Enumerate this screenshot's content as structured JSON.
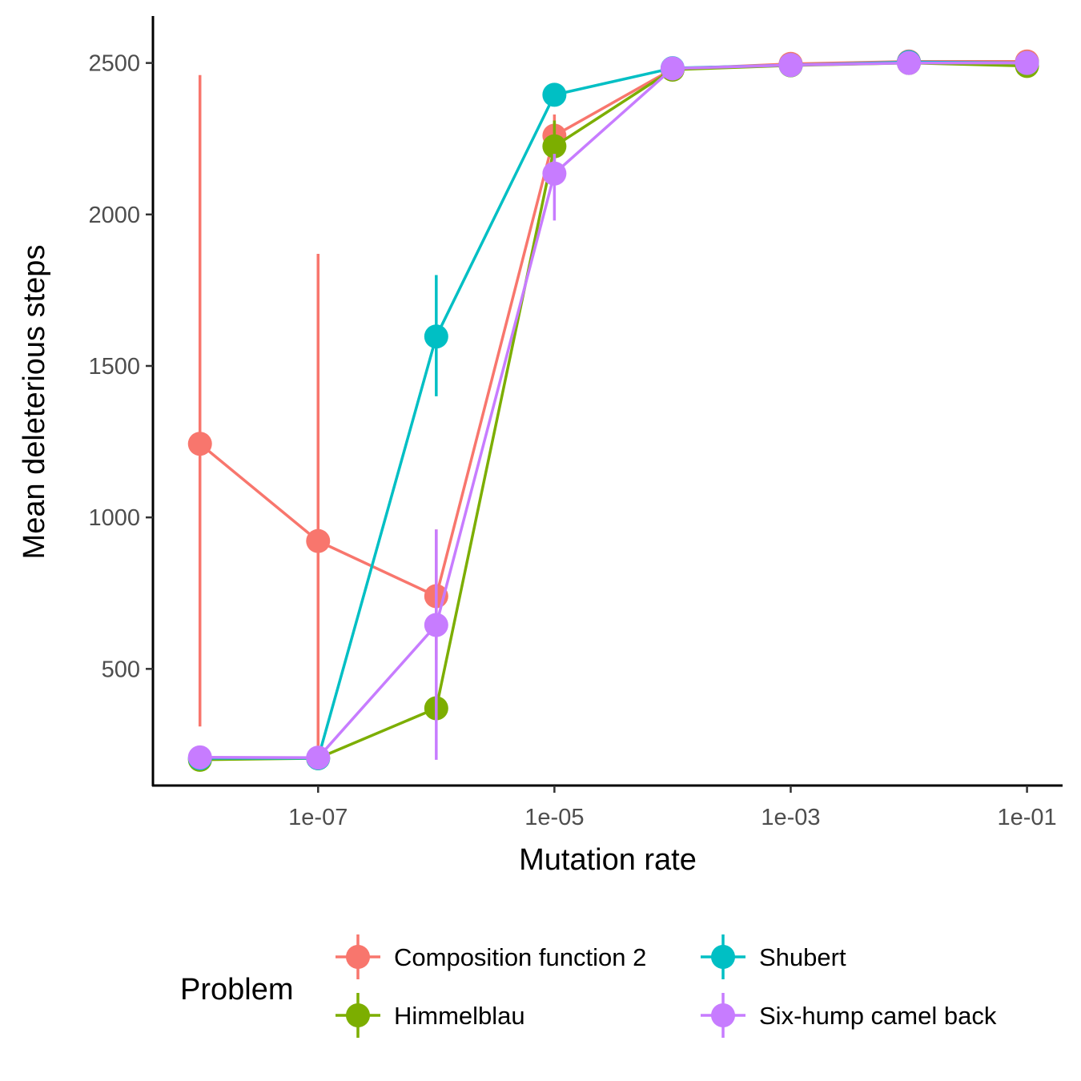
{
  "chart_data": {
    "type": "line",
    "xlabel": "Mutation rate",
    "ylabel": "Mean deleterious steps",
    "x_scale": "log10",
    "x": [
      1e-08,
      1e-07,
      1e-06,
      1e-05,
      0.0001,
      0.001,
      0.01,
      0.1
    ],
    "xlim": [
      4e-09,
      0.2
    ],
    "ylim": [
      115,
      2655
    ],
    "x_ticks": [
      1e-07,
      1e-05,
      0.001,
      0.1
    ],
    "x_tick_labels": [
      "1e-07",
      "1e-05",
      "1e-03",
      "1e-01"
    ],
    "y_ticks": [
      500,
      1000,
      1500,
      2000,
      2500
    ],
    "y_tick_labels": [
      "500",
      "1000",
      "1500",
      "2000",
      "2500"
    ],
    "grid": false,
    "legend": {
      "title": "Problem",
      "position": "bottom"
    },
    "series": [
      {
        "name": "Composition function 2",
        "color": "#F8766D",
        "values": [
          1243,
          922,
          740,
          2260,
          2480,
          2497,
          2505,
          2505
        ],
        "error_low": [
          310,
          200,
          530,
          2210,
          2470,
          2490,
          2498,
          2498
        ],
        "error_high": [
          2460,
          1870,
          960,
          2330,
          2490,
          2505,
          2512,
          2512
        ]
      },
      {
        "name": "Himmelblau",
        "color": "#7CAE00",
        "values": [
          200,
          205,
          370,
          2225,
          2478,
          2492,
          2500,
          2490
        ],
        "error_low": [
          195,
          200,
          340,
          2170,
          2470,
          2485,
          2493,
          2483
        ],
        "error_high": [
          205,
          210,
          400,
          2310,
          2486,
          2499,
          2507,
          2497
        ]
      },
      {
        "name": "Shubert",
        "color": "#00BFC4",
        "values": [
          205,
          205,
          1597,
          2395,
          2483,
          2493,
          2503,
          2500
        ],
        "error_low": [
          200,
          200,
          1400,
          2360,
          2476,
          2486,
          2496,
          2493
        ],
        "error_high": [
          210,
          210,
          1800,
          2430,
          2490,
          2500,
          2510,
          2507
        ]
      },
      {
        "name": "Six-hump camel back",
        "color": "#C77CFF",
        "values": [
          208,
          207,
          645,
          2135,
          2482,
          2493,
          2500,
          2500
        ],
        "error_low": [
          203,
          202,
          200,
          1980,
          2475,
          2486,
          2493,
          2493
        ],
        "error_high": [
          213,
          212,
          960,
          2200,
          2489,
          2500,
          2507,
          2507
        ]
      }
    ]
  }
}
